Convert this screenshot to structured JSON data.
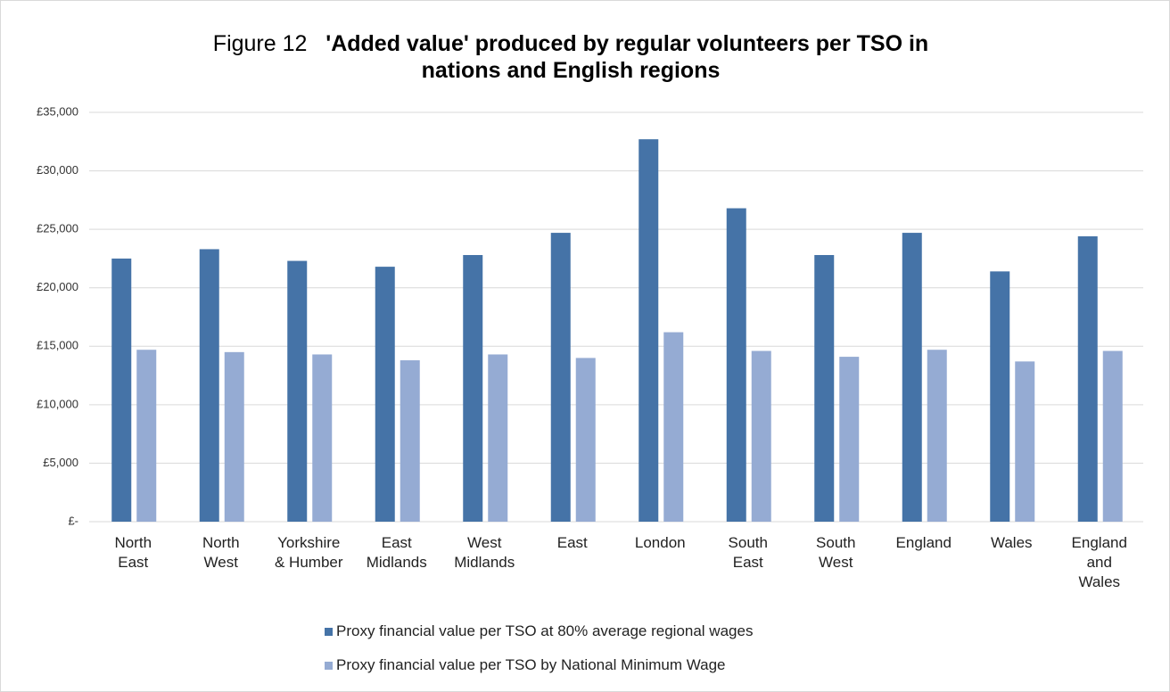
{
  "chart_data": {
    "type": "bar",
    "figure_label": "Figure 12",
    "title": "'Added value' produced by regular volunteers per TSO in nations and English regions",
    "categories": [
      "North\nEast",
      "North\nWest",
      "Yorkshire\n& Humber",
      "East\nMidlands",
      "West\nMidlands",
      "East",
      "London",
      "South\nEast",
      "South\nWest",
      "England",
      "Wales",
      "England\nand\nWales"
    ],
    "series": [
      {
        "name": "Proxy financial value per TSO at 80% average regional wages",
        "color": "#4573a7",
        "values": [
          22500,
          23300,
          22300,
          21800,
          22800,
          24700,
          32700,
          26800,
          22800,
          24700,
          21400,
          24400
        ]
      },
      {
        "name": "Proxy financial value per TSO by National Minimum Wage",
        "color": "#95abd3",
        "values": [
          14700,
          14500,
          14300,
          13800,
          14300,
          14000,
          16200,
          14600,
          14100,
          14700,
          13700,
          14600
        ]
      }
    ],
    "ylim": [
      0,
      35000
    ],
    "yticks": [
      {
        "value": 0,
        "label": "£-"
      },
      {
        "value": 5000,
        "label": "£5,000"
      },
      {
        "value": 10000,
        "label": "£10,000"
      },
      {
        "value": 15000,
        "label": "£15,000"
      },
      {
        "value": 20000,
        "label": "£20,000"
      },
      {
        "value": 25000,
        "label": "£25,000"
      },
      {
        "value": 30000,
        "label": "£30,000"
      },
      {
        "value": 35000,
        "label": "£35,000"
      }
    ],
    "grid": true
  }
}
